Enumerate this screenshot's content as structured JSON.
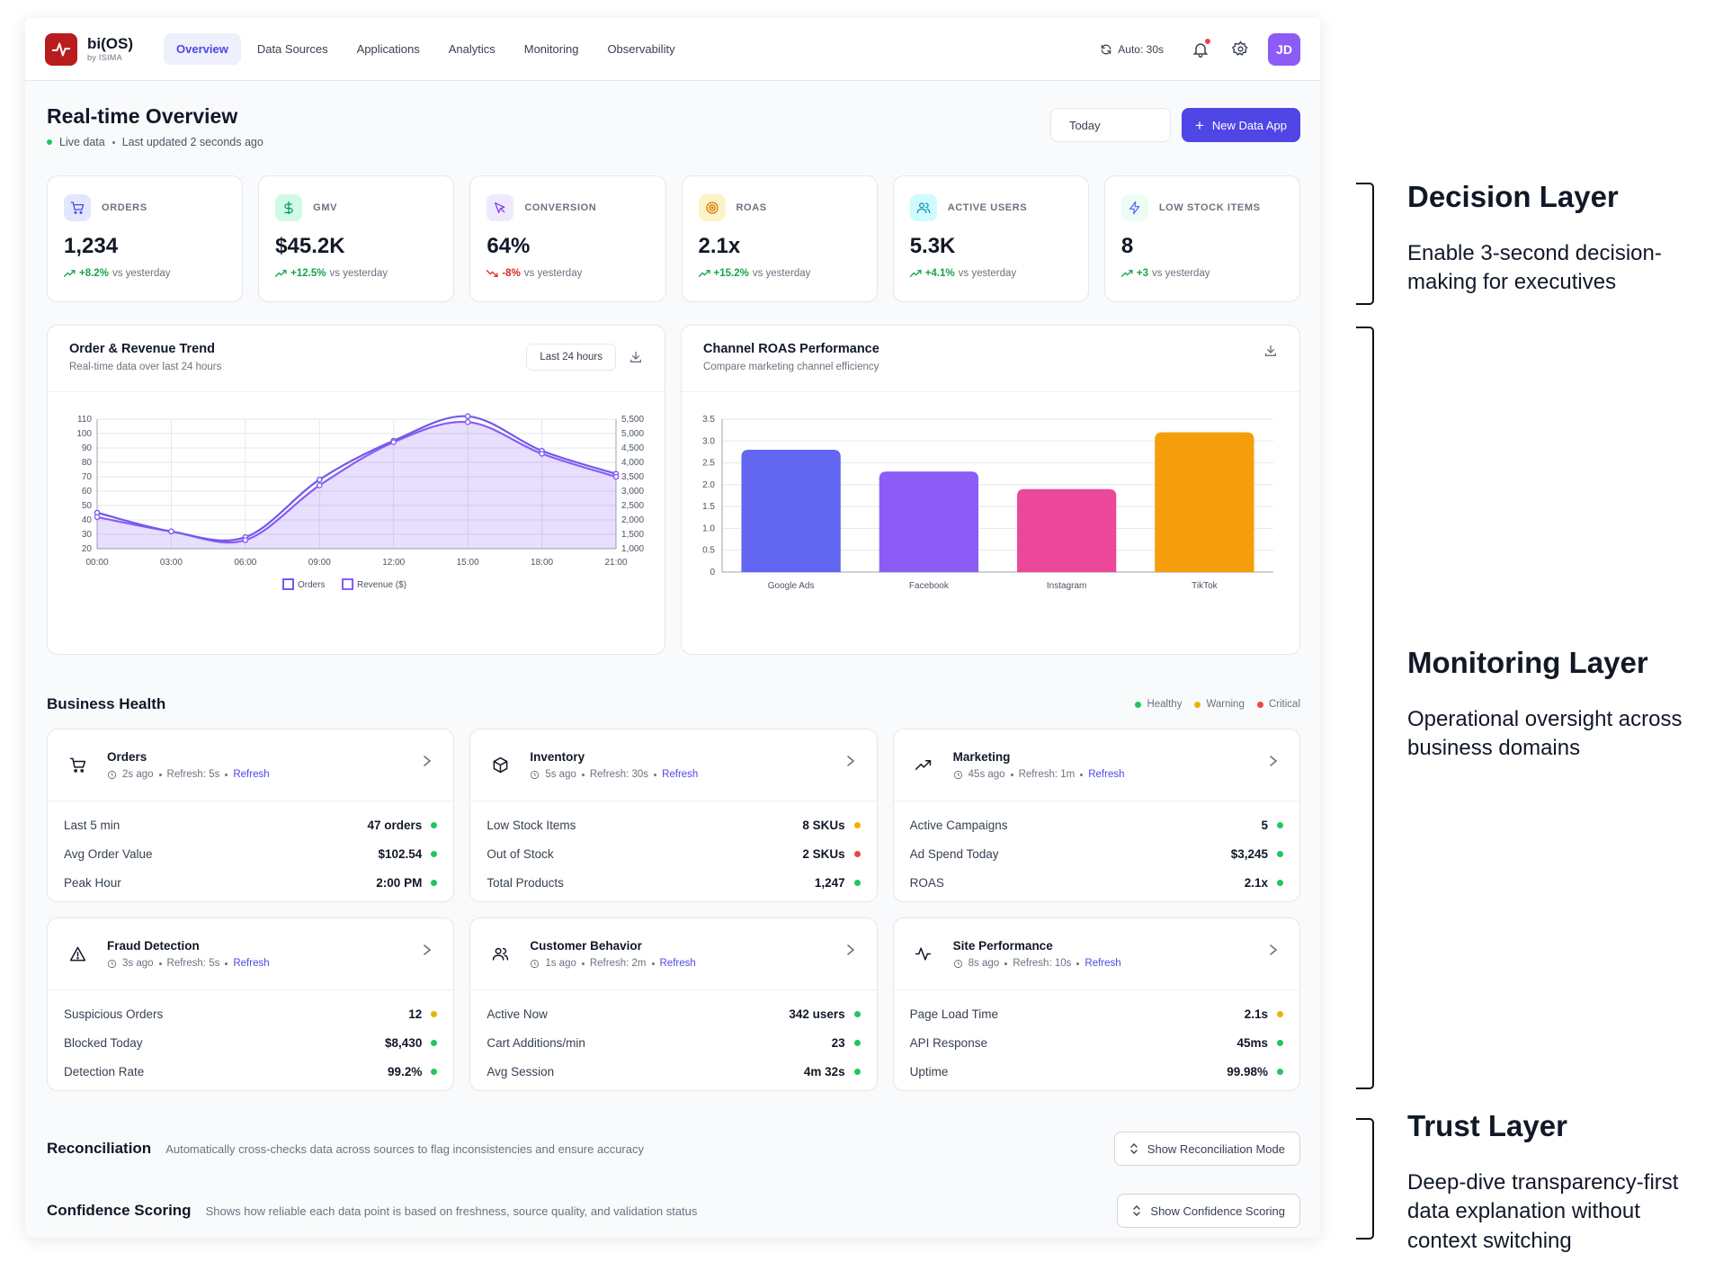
{
  "app": {
    "name": "bi(OS)",
    "subtitle": "by ISIMA"
  },
  "nav": {
    "tabs": [
      "Overview",
      "Data Sources",
      "Applications",
      "Analytics",
      "Monitoring",
      "Observability"
    ],
    "active": "Overview",
    "auto_refresh": "Auto: 30s",
    "avatar_initials": "JD"
  },
  "header": {
    "title": "Real-time Overview",
    "live": "Live data",
    "updated": "Last updated 2 seconds ago",
    "date_filter": "Today",
    "new_app_button": "New Data App"
  },
  "kpis": [
    {
      "label": "ORDERS",
      "value": "1,234",
      "delta": "+8.2%",
      "trend": "up",
      "note": "vs yesterday",
      "icon": "cart-icon",
      "bg": "#e0e7ff",
      "fg": "#4f46e5"
    },
    {
      "label": "GMV",
      "value": "$45.2K",
      "delta": "+12.5%",
      "trend": "up",
      "note": "vs yesterday",
      "icon": "dollar-icon",
      "bg": "#d1fae5",
      "fg": "#059669"
    },
    {
      "label": "CONVERSION",
      "value": "64%",
      "delta": "-8%",
      "trend": "down",
      "note": "vs yesterday",
      "icon": "cursor-icon",
      "bg": "#ede9fe",
      "fg": "#7c3aed"
    },
    {
      "label": "ROAS",
      "value": "2.1x",
      "delta": "+15.2%",
      "trend": "up",
      "note": "vs yesterday",
      "icon": "target-icon",
      "bg": "#fef3c7",
      "fg": "#d97706"
    },
    {
      "label": "ACTIVE USERS",
      "value": "5.3K",
      "delta": "+4.1%",
      "trend": "up",
      "note": "vs yesterday",
      "icon": "users-icon",
      "bg": "#cffafe",
      "fg": "#0891b2"
    },
    {
      "label": "LOW STOCK ITEMS",
      "value": "8",
      "delta": "+3",
      "trend": "up",
      "note": "vs yesterday",
      "icon": "bolt-icon",
      "bg": "#ecfdf5",
      "fg": "#6366f1"
    }
  ],
  "trend_card": {
    "title": "Order & Revenue Trend",
    "subtitle": "Real-time data over last 24 hours",
    "range": "Last 24 hours"
  },
  "roas_card": {
    "title": "Channel ROAS Performance",
    "subtitle": "Compare marketing channel efficiency"
  },
  "chart_data": [
    {
      "type": "line",
      "title": "Order & Revenue Trend",
      "x": [
        "00:00",
        "03:00",
        "06:00",
        "09:00",
        "12:00",
        "15:00",
        "18:00",
        "21:00"
      ],
      "x_ticks": [
        "00:00",
        "03:00",
        "06:00",
        "09:00",
        "12:00",
        "15:00",
        "18:00",
        "21:00"
      ],
      "series": [
        {
          "name": "Orders",
          "axis": "left",
          "values": [
            45,
            32,
            28,
            68,
            95,
            112,
            88,
            72
          ]
        },
        {
          "name": "Revenue ($)",
          "axis": "right",
          "values": [
            2100,
            1600,
            1300,
            3200,
            4700,
            5400,
            4300,
            3500
          ]
        }
      ],
      "y_left": {
        "ticks": [
          "20",
          "30",
          "40",
          "50",
          "60",
          "70",
          "80",
          "90",
          "100",
          "110"
        ],
        "range": [
          20,
          110
        ]
      },
      "y_right": {
        "ticks": [
          "1,000",
          "1,500",
          "2,000",
          "2,500",
          "3,000",
          "3,500",
          "4,000",
          "4,500",
          "5,000",
          "5,500"
        ],
        "range": [
          1000,
          5500
        ]
      },
      "legend": [
        "Orders",
        "Revenue ($)"
      ],
      "colors": [
        "#6d5ce8",
        "#8b5cf6"
      ],
      "legend_position": "bottom"
    },
    {
      "type": "bar",
      "title": "Channel ROAS Performance",
      "categories": [
        "Google Ads",
        "Facebook",
        "Instagram",
        "TikTok"
      ],
      "values": [
        2.8,
        2.3,
        1.9,
        3.2
      ],
      "colors": [
        "#6366f1",
        "#8b5cf6",
        "#ec4899",
        "#f59e0b"
      ],
      "y_ticks": [
        "0",
        "0.5",
        "1.0",
        "1.5",
        "2.0",
        "2.5",
        "3.0",
        "3.5"
      ],
      "ylim": [
        0,
        3.5
      ]
    }
  ],
  "health": {
    "title": "Business Health",
    "legend": [
      {
        "label": "Healthy",
        "color": "#22c55e"
      },
      {
        "label": "Warning",
        "color": "#eab308"
      },
      {
        "label": "Critical",
        "color": "#ef4444"
      }
    ],
    "cards": [
      {
        "title": "Orders",
        "icon": "cart-icon",
        "ago": "2s ago",
        "refresh": "Refresh: 5s",
        "link": "Refresh",
        "rows": [
          {
            "label": "Last 5 min",
            "value": "47 orders",
            "status": "#22c55e"
          },
          {
            "label": "Avg Order Value",
            "value": "$102.54",
            "status": "#22c55e"
          },
          {
            "label": "Peak Hour",
            "value": "2:00 PM",
            "status": "#22c55e"
          }
        ]
      },
      {
        "title": "Inventory",
        "icon": "box-icon",
        "ago": "5s ago",
        "refresh": "Refresh: 30s",
        "link": "Refresh",
        "rows": [
          {
            "label": "Low Stock Items",
            "value": "8 SKUs",
            "status": "#eab308"
          },
          {
            "label": "Out of Stock",
            "value": "2 SKUs",
            "status": "#ef4444"
          },
          {
            "label": "Total Products",
            "value": "1,247",
            "status": "#22c55e"
          }
        ]
      },
      {
        "title": "Marketing",
        "icon": "trending-up-icon",
        "ago": "45s ago",
        "refresh": "Refresh: 1m",
        "link": "Refresh",
        "rows": [
          {
            "label": "Active Campaigns",
            "value": "5",
            "status": "#22c55e"
          },
          {
            "label": "Ad Spend Today",
            "value": "$3,245",
            "status": "#22c55e"
          },
          {
            "label": "ROAS",
            "value": "2.1x",
            "status": "#22c55e"
          }
        ]
      },
      {
        "title": "Fraud Detection",
        "icon": "alert-icon",
        "ago": "3s ago",
        "refresh": "Refresh: 5s",
        "link": "Refresh",
        "rows": [
          {
            "label": "Suspicious Orders",
            "value": "12",
            "status": "#eab308"
          },
          {
            "label": "Blocked Today",
            "value": "$8,430",
            "status": "#22c55e"
          },
          {
            "label": "Detection Rate",
            "value": "99.2%",
            "status": "#22c55e"
          }
        ]
      },
      {
        "title": "Customer Behavior",
        "icon": "users-icon",
        "ago": "1s ago",
        "refresh": "Refresh: 2m",
        "link": "Refresh",
        "rows": [
          {
            "label": "Active Now",
            "value": "342 users",
            "status": "#22c55e"
          },
          {
            "label": "Cart Additions/min",
            "value": "23",
            "status": "#22c55e"
          },
          {
            "label": "Avg Session",
            "value": "4m 32s",
            "status": "#22c55e"
          }
        ]
      },
      {
        "title": "Site Performance",
        "icon": "activity-icon",
        "ago": "8s ago",
        "refresh": "Refresh: 10s",
        "link": "Refresh",
        "rows": [
          {
            "label": "Page Load Time",
            "value": "2.1s",
            "status": "#eab308"
          },
          {
            "label": "API Response",
            "value": "45ms",
            "status": "#22c55e"
          },
          {
            "label": "Uptime",
            "value": "99.98%",
            "status": "#22c55e"
          }
        ]
      }
    ]
  },
  "trust": {
    "reconciliation": {
      "title": "Reconciliation",
      "desc": "Automatically cross-checks data across sources to flag inconsistencies and ensure accuracy",
      "button": "Show Reconciliation Mode"
    },
    "confidence": {
      "title": "Confidence Scoring",
      "desc": "Shows how reliable each data point is based on freshness, source quality, and validation status",
      "button": "Show Confidence Scoring"
    }
  },
  "annotations": [
    {
      "title": "Decision Layer",
      "desc": "Enable 3-second decision-making for executives"
    },
    {
      "title": "Monitoring Layer",
      "desc": "Operational oversight across business domains"
    },
    {
      "title": "Trust Layer",
      "desc": "Deep-dive transparency-first data explanation without context switching"
    }
  ]
}
